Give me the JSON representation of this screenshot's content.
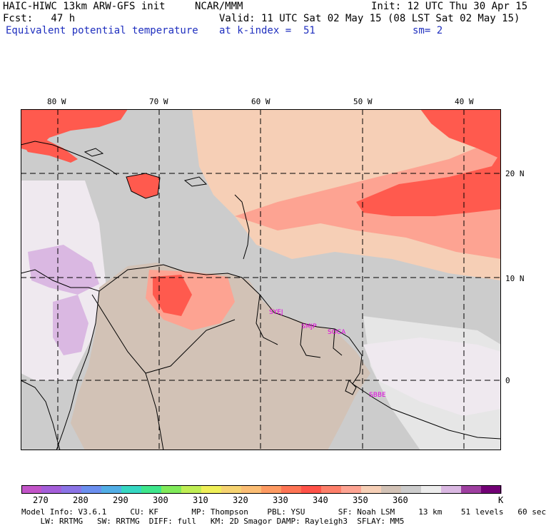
{
  "header": {
    "model_title": "HAIC-HIWC 13km ARW-GFS init",
    "center": "NCAR/MMM",
    "init_time": "Init: 12 UTC Thu 30 Apr 15",
    "forecast_hour": "Fcst:   47 h",
    "valid_time": "Valid: 11 UTC Sat 02 May 15 (08 LST Sat 02 May 15)",
    "field_name": "Equivalent potential temperature",
    "level": "at k-index =  51",
    "smoothing": "sm= 2"
  },
  "map": {
    "longitude_labels": [
      "80 W",
      "70 W",
      "60 W",
      "50 W",
      "40 W"
    ],
    "latitude_labels": [
      "20 N",
      "10 N",
      "0"
    ],
    "stations": [
      "SYEJ",
      "SMJP",
      "SOCA",
      "SBBE"
    ],
    "palette": {
      "ocean_warm": "#f6cfb6",
      "ocean_hot": "#ff5a4e",
      "ocean_salmon": "#fda392",
      "land": "#d2c2b6",
      "cool_gray": "#cccccc",
      "very_cool": "#efe9ef",
      "lavender": "#dab8e2"
    }
  },
  "colorbar": {
    "colors": [
      "#c254c8",
      "#a45ed9",
      "#8b74e6",
      "#6b8fef",
      "#52aee6",
      "#36d7c2",
      "#3ee68c",
      "#80ea5a",
      "#bfee54",
      "#efef58",
      "#f6d371",
      "#fbbd74",
      "#fd9a62",
      "#fd7454",
      "#ff5248",
      "#fd7f6a",
      "#fda392",
      "#f6cfb6",
      "#d2c2b6",
      "#cccccc",
      "#ececec",
      "#dab8e2",
      "#9e3fa0",
      "#720075"
    ],
    "tick_labels": [
      "270",
      "280",
      "290",
      "300",
      "310",
      "320",
      "330",
      "340",
      "350",
      "360"
    ],
    "unit": "K"
  },
  "model_info": {
    "line1": "Model Info: V3.6.1     CU: KF       MP: Thompson    PBL: YSU       SF: Noah LSM     13 km    51 levels   60 sec",
    "line2": "    LW: RRTMG   SW: RRTMG  DIFF: full   KM: 2D Smagor DAMP: Rayleigh3  SFLAY: MM5"
  }
}
